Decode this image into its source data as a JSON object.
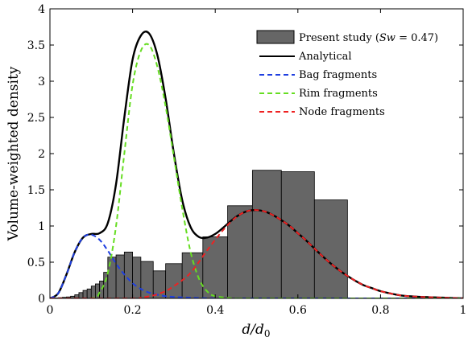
{
  "chart_data": {
    "type": "bar",
    "xlabel": "d/d",
    "xlabel_sub": "0",
    "ylabel": "Volume-weighted density",
    "xlim": [
      0,
      1
    ],
    "ylim": [
      0,
      4
    ],
    "x_ticks": [
      0,
      0.2,
      0.4,
      0.6,
      0.8,
      1
    ],
    "x_tick_labels": [
      "0",
      "0.2",
      "0.4",
      "0.6",
      "0.8",
      "1"
    ],
    "y_ticks": [
      0,
      0.5,
      1,
      1.5,
      2,
      2.5,
      3,
      3.5,
      4
    ],
    "y_tick_labels": [
      "0",
      "0.5",
      "1",
      "1.5",
      "2",
      "2.5",
      "3",
      "3.5",
      "4"
    ],
    "grid": false,
    "legend_position": "top-right",
    "legend": {
      "hist_prefix": "Present study (",
      "hist_math": "Sw",
      "hist_eq": " = 0.47)",
      "analytical": "Analytical",
      "bag": "Bag fragments",
      "rim": "Rim fragments",
      "node": "Node fragments"
    },
    "histogram": {
      "name": "Present study (Sw = 0.47)",
      "color": "#666666",
      "edges": [
        0.0,
        0.01,
        0.02,
        0.03,
        0.04,
        0.05,
        0.06,
        0.07,
        0.08,
        0.09,
        0.1,
        0.11,
        0.12,
        0.13,
        0.14,
        0.16,
        0.18,
        0.2,
        0.22,
        0.25,
        0.28,
        0.32,
        0.37,
        0.43,
        0.49,
        0.56,
        0.64,
        0.72
      ],
      "values": [
        0.002,
        0.005,
        0.01,
        0.015,
        0.02,
        0.03,
        0.05,
        0.08,
        0.11,
        0.13,
        0.17,
        0.2,
        0.24,
        0.36,
        0.57,
        0.6,
        0.64,
        0.57,
        0.51,
        0.38,
        0.48,
        0.63,
        0.85,
        1.28,
        1.77,
        1.75,
        1.36
      ]
    },
    "series": [
      {
        "name": "Analytical",
        "color": "#000000",
        "dash": "solid",
        "x": [
          0,
          0.02,
          0.04,
          0.06,
          0.08,
          0.1,
          0.12,
          0.14,
          0.16,
          0.18,
          0.2,
          0.22,
          0.24,
          0.26,
          0.28,
          0.3,
          0.32,
          0.34,
          0.36,
          0.38,
          0.4,
          0.42,
          0.44,
          0.46,
          0.48,
          0.5,
          0.52,
          0.54,
          0.56,
          0.58,
          0.6,
          0.62,
          0.64,
          0.66,
          0.68,
          0.7,
          0.72,
          0.74,
          0.76,
          0.78,
          0.8,
          0.85,
          0.9,
          0.95,
          1.0
        ],
        "y": [
          0.0,
          0.07,
          0.33,
          0.64,
          0.84,
          0.89,
          0.9,
          1.04,
          1.58,
          2.5,
          3.3,
          3.63,
          3.66,
          3.36,
          2.76,
          2.0,
          1.36,
          0.99,
          0.85,
          0.84,
          0.89,
          0.98,
          1.08,
          1.16,
          1.21,
          1.22,
          1.2,
          1.15,
          1.08,
          1.0,
          0.9,
          0.8,
          0.69,
          0.58,
          0.48,
          0.39,
          0.31,
          0.24,
          0.18,
          0.14,
          0.1,
          0.04,
          0.02,
          0.01,
          0.0
        ]
      },
      {
        "name": "Bag fragments",
        "color": "#1f3fe0",
        "dash": "dashed",
        "x": [
          0,
          0.02,
          0.04,
          0.06,
          0.08,
          0.1,
          0.12,
          0.14,
          0.16,
          0.18,
          0.2,
          0.22,
          0.24,
          0.26,
          0.28,
          0.3,
          0.34,
          0.4,
          0.5,
          1.0
        ],
        "y": [
          0.0,
          0.07,
          0.33,
          0.64,
          0.84,
          0.88,
          0.81,
          0.66,
          0.48,
          0.33,
          0.21,
          0.13,
          0.08,
          0.05,
          0.03,
          0.02,
          0.01,
          0.0,
          0.0,
          0.0
        ]
      },
      {
        "name": "Rim fragments",
        "color": "#66dd22",
        "dash": "dashed",
        "x": [
          0,
          0.1,
          0.12,
          0.14,
          0.16,
          0.18,
          0.2,
          0.22,
          0.24,
          0.26,
          0.28,
          0.3,
          0.32,
          0.34,
          0.36,
          0.38,
          0.4,
          0.45,
          0.5,
          1.0
        ],
        "y": [
          0.0,
          0.0,
          0.08,
          0.35,
          1.0,
          2.0,
          2.95,
          3.42,
          3.5,
          3.2,
          2.65,
          1.95,
          1.25,
          0.65,
          0.28,
          0.1,
          0.03,
          0.0,
          0.0,
          0.0
        ]
      },
      {
        "name": "Node fragments",
        "color": "#ee2222",
        "dash": "dashed",
        "x": [
          0,
          0.2,
          0.22,
          0.25,
          0.28,
          0.3,
          0.32,
          0.34,
          0.36,
          0.38,
          0.4,
          0.42,
          0.44,
          0.46,
          0.48,
          0.5,
          0.52,
          0.54,
          0.56,
          0.58,
          0.6,
          0.62,
          0.64,
          0.66,
          0.68,
          0.7,
          0.72,
          0.74,
          0.76,
          0.78,
          0.8,
          0.85,
          0.9,
          0.95,
          1.0
        ],
        "y": [
          0.0,
          0.0,
          0.01,
          0.04,
          0.1,
          0.17,
          0.25,
          0.35,
          0.5,
          0.66,
          0.81,
          0.95,
          1.07,
          1.16,
          1.21,
          1.22,
          1.2,
          1.15,
          1.08,
          1.0,
          0.9,
          0.8,
          0.69,
          0.58,
          0.48,
          0.39,
          0.31,
          0.24,
          0.18,
          0.14,
          0.1,
          0.04,
          0.02,
          0.01,
          0.0
        ]
      }
    ]
  }
}
